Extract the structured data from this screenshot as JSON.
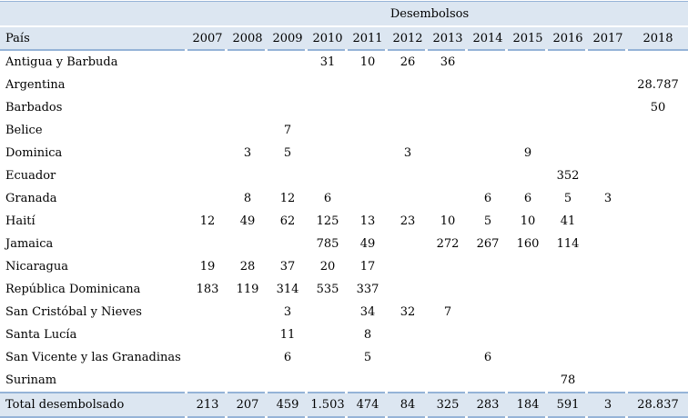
{
  "table": {
    "title": "Desembolsos",
    "country_header": "País",
    "years": [
      "2007",
      "2008",
      "2009",
      "2010",
      "2011",
      "2012",
      "2013",
      "2014",
      "2015",
      "2016",
      "2017",
      "2018"
    ],
    "rows": [
      {
        "country": "Antigua y Barbuda",
        "values": [
          "",
          "",
          "",
          "31",
          "10",
          "26",
          "36",
          "",
          "",
          "",
          "",
          ""
        ]
      },
      {
        "country": "Argentina",
        "values": [
          "",
          "",
          "",
          "",
          "",
          "",
          "",
          "",
          "",
          "",
          "",
          "28.787"
        ]
      },
      {
        "country": "Barbados",
        "values": [
          "",
          "",
          "",
          "",
          "",
          "",
          "",
          "",
          "",
          "",
          "",
          "50"
        ]
      },
      {
        "country": "Belice",
        "values": [
          "",
          "",
          "7",
          "",
          "",
          "",
          "",
          "",
          "",
          "",
          "",
          ""
        ]
      },
      {
        "country": "Dominica",
        "values": [
          "",
          "3",
          "5",
          "",
          "",
          "3",
          "",
          "",
          "9",
          "",
          "",
          ""
        ]
      },
      {
        "country": "Ecuador",
        "values": [
          "",
          "",
          "",
          "",
          "",
          "",
          "",
          "",
          "",
          "352",
          "",
          ""
        ]
      },
      {
        "country": "Granada",
        "values": [
          "",
          "8",
          "12",
          "6",
          "",
          "",
          "",
          "6",
          "6",
          "5",
          "3",
          ""
        ]
      },
      {
        "country": "Haití",
        "values": [
          "12",
          "49",
          "62",
          "125",
          "13",
          "23",
          "10",
          "5",
          "10",
          "41",
          "",
          ""
        ]
      },
      {
        "country": "Jamaica",
        "values": [
          "",
          "",
          "",
          "785",
          "49",
          "",
          "272",
          "267",
          "160",
          "114",
          "",
          ""
        ]
      },
      {
        "country": "Nicaragua",
        "values": [
          "19",
          "28",
          "37",
          "20",
          "17",
          "",
          "",
          "",
          "",
          "",
          "",
          ""
        ]
      },
      {
        "country": "República Dominicana",
        "values": [
          "183",
          "119",
          "314",
          "535",
          "337",
          "",
          "",
          "",
          "",
          "",
          "",
          ""
        ]
      },
      {
        "country": "San Cristóbal y Nieves",
        "values": [
          "",
          "",
          "3",
          "",
          "34",
          "32",
          "7",
          "",
          "",
          "",
          "",
          ""
        ]
      },
      {
        "country": "Santa Lucía",
        "values": [
          "",
          "",
          "11",
          "",
          "8",
          "",
          "",
          "",
          "",
          "",
          "",
          ""
        ]
      },
      {
        "country": "San Vicente y las Granadinas",
        "values": [
          "",
          "",
          "6",
          "",
          "5",
          "",
          "",
          "6",
          "",
          "",
          "",
          ""
        ]
      },
      {
        "country": "Surinam",
        "values": [
          "",
          "",
          "",
          "",
          "",
          "",
          "",
          "",
          "",
          "78",
          "",
          ""
        ]
      }
    ],
    "total": {
      "label": "Total desembolsado",
      "values": [
        "213",
        "207",
        "459",
        "1.503",
        "474",
        "84",
        "325",
        "283",
        "184",
        "591",
        "3",
        "28.837"
      ]
    }
  },
  "colors": {
    "header_background": "#dce6f1",
    "rule_blue": "#95b3d7",
    "text": "#000000",
    "page_background": "#ffffff"
  }
}
